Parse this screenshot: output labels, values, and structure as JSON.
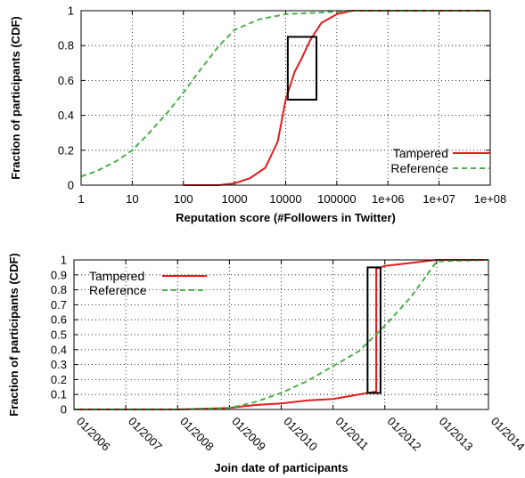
{
  "chart_data": [
    {
      "type": "line",
      "xscale": "log",
      "xlabel": "Reputation score (#Followers in Twitter)",
      "ylabel": "Fraction of participants (CDF)",
      "xlim": [
        1,
        100000000
      ],
      "ylim": [
        0,
        1
      ],
      "grid": true,
      "legend": "bottom-right",
      "xticks": [
        1,
        10,
        100,
        1000,
        10000,
        100000,
        1000000,
        10000000,
        100000000
      ],
      "xtick_labels": [
        "1",
        "10",
        "100",
        "1000",
        "10000",
        "100000",
        "1e+06",
        "1e+07",
        "1e+08"
      ],
      "yticks": [
        0,
        0.2,
        0.4,
        0.6,
        0.8,
        1
      ],
      "ytick_labels": [
        "0",
        "0.2",
        "0.4",
        "0.6",
        "0.8",
        "1"
      ],
      "series": [
        {
          "name": "Tampered",
          "color": "#e41a1c",
          "style": "solid",
          "x": [
            100,
            500,
            1000,
            2000,
            4000,
            7000,
            10000,
            15000,
            20000,
            30000,
            50000,
            100000,
            200000,
            1000000,
            100000000
          ],
          "y": [
            0,
            0,
            0.01,
            0.04,
            0.1,
            0.25,
            0.49,
            0.65,
            0.72,
            0.83,
            0.93,
            0.98,
            1,
            1,
            1
          ]
        },
        {
          "name": "Reference",
          "color": "#4daf4a",
          "style": "dashed",
          "x": [
            1,
            2,
            5,
            10,
            20,
            50,
            100,
            200,
            500,
            1000,
            3000,
            10000,
            50000,
            200000,
            1000000,
            100000000
          ],
          "y": [
            0.05,
            0.08,
            0.14,
            0.2,
            0.29,
            0.42,
            0.53,
            0.65,
            0.8,
            0.89,
            0.95,
            0.98,
            0.99,
            1,
            1,
            1
          ]
        }
      ],
      "annotation": {
        "type": "box",
        "x": [
          11000,
          40000
        ],
        "y": [
          0.49,
          0.85
        ]
      }
    },
    {
      "type": "line",
      "xlabel": "Join date of participants",
      "ylabel": "Fraction of participants (CDF)",
      "xlim": [
        "2006-01",
        "2014-01"
      ],
      "ylim": [
        0,
        1
      ],
      "grid": true,
      "legend": "top-left",
      "xticks": [
        "2006-01",
        "2007-01",
        "2008-01",
        "2009-01",
        "2010-01",
        "2011-01",
        "2012-01",
        "2013-01",
        "2014-01"
      ],
      "xtick_labels": [
        "01/2006",
        "01/2007",
        "01/2008",
        "01/2009",
        "01/2010",
        "01/2011",
        "01/2012",
        "01/2013",
        "01/2014"
      ],
      "yticks": [
        0,
        0.1,
        0.2,
        0.3,
        0.4,
        0.5,
        0.6,
        0.7,
        0.8,
        0.9,
        1
      ],
      "ytick_labels": [
        "0",
        "0.1",
        "0.2",
        "0.3",
        "0.4",
        "0.5",
        "0.6",
        "0.7",
        "0.8",
        "0.9",
        "1"
      ],
      "series": [
        {
          "name": "Tampered",
          "color": "#e41a1c",
          "style": "solid",
          "x": [
            "2006-01",
            "2008-01",
            "2009-01",
            "2009-07",
            "2010-01",
            "2010-07",
            "2011-01",
            "2011-05",
            "2011-09",
            "2011-11",
            "2011-11",
            "2012-01",
            "2012-07",
            "2013-01",
            "2014-01"
          ],
          "y": [
            0,
            0,
            0.01,
            0.03,
            0.04,
            0.06,
            0.07,
            0.09,
            0.11,
            0.12,
            0.94,
            0.96,
            0.98,
            1,
            1
          ]
        },
        {
          "name": "Reference",
          "color": "#4daf4a",
          "style": "dashed",
          "x": [
            "2006-01",
            "2008-01",
            "2009-01",
            "2009-07",
            "2010-01",
            "2010-07",
            "2011-01",
            "2011-07",
            "2012-01",
            "2012-07",
            "2013-01",
            "2014-01"
          ],
          "y": [
            0,
            0,
            0.01,
            0.05,
            0.11,
            0.19,
            0.29,
            0.39,
            0.56,
            0.75,
            0.99,
            1
          ]
        }
      ],
      "annotation": {
        "type": "box",
        "x": [
          "2011-09",
          "2011-12"
        ],
        "y": [
          0.11,
          0.95
        ]
      }
    }
  ]
}
